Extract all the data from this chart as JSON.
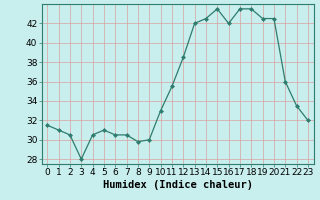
{
  "title": "",
  "xlabel": "Humidex (Indice chaleur)",
  "ylabel": "",
  "x": [
    0,
    1,
    2,
    3,
    4,
    5,
    6,
    7,
    8,
    9,
    10,
    11,
    12,
    13,
    14,
    15,
    16,
    17,
    18,
    19,
    20,
    21,
    22,
    23
  ],
  "y": [
    31.5,
    31.0,
    30.5,
    28.0,
    30.5,
    31.0,
    30.5,
    30.5,
    29.8,
    30.0,
    33.0,
    35.5,
    38.5,
    42.0,
    42.5,
    43.5,
    42.0,
    43.5,
    43.5,
    42.5,
    42.5,
    36.0,
    33.5,
    32.0
  ],
  "line_color": "#2e7d6e",
  "marker": "D",
  "marker_size": 2.0,
  "background_color": "#c8eeee",
  "grid_color": "#daa0a0",
  "ylim": [
    27.5,
    44.0
  ],
  "yticks": [
    28,
    30,
    32,
    34,
    36,
    38,
    40,
    42
  ],
  "xticks": [
    0,
    1,
    2,
    3,
    4,
    5,
    6,
    7,
    8,
    9,
    10,
    11,
    12,
    13,
    14,
    15,
    16,
    17,
    18,
    19,
    20,
    21,
    22,
    23
  ],
  "tick_fontsize": 6.5,
  "xlabel_fontsize": 7.5
}
